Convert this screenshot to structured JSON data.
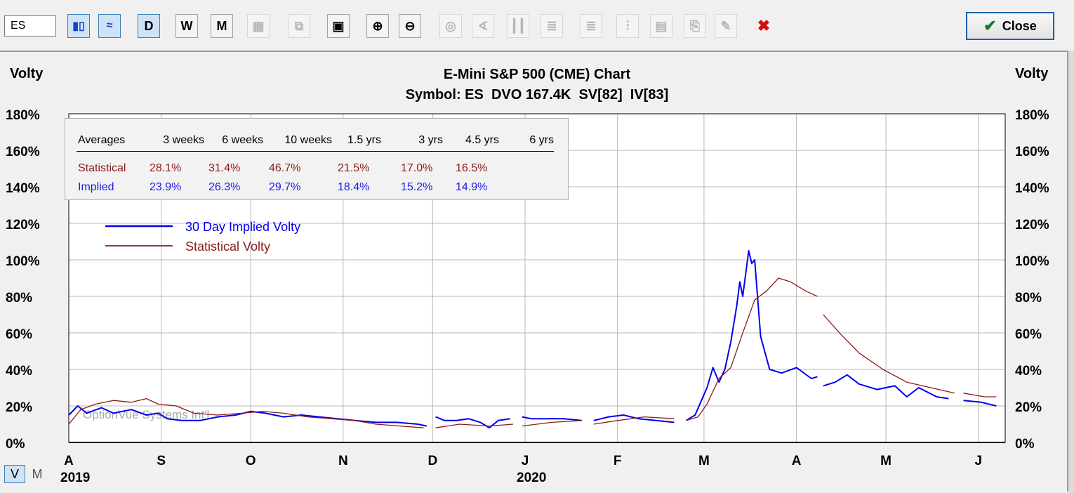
{
  "toolbar": {
    "symbol_value": "ES",
    "buttons": [
      {
        "name": "bar-chart-button",
        "glyph": "▮▯",
        "state": "sel"
      },
      {
        "name": "line-chart-button",
        "glyph": "≈",
        "state": "sel"
      },
      {
        "name": "daily-button",
        "glyph": "D",
        "state": "sel"
      },
      {
        "name": "weekly-button",
        "glyph": "W",
        "state": ""
      },
      {
        "name": "monthly-button",
        "glyph": "M",
        "state": ""
      },
      {
        "name": "grid-button",
        "glyph": "▦",
        "state": "dis"
      },
      {
        "name": "copy-button",
        "glyph": "⧉",
        "state": "dis"
      },
      {
        "name": "calendar-button",
        "glyph": "▣",
        "state": ""
      },
      {
        "name": "zoom-in-button",
        "glyph": "⊕",
        "state": ""
      },
      {
        "name": "zoom-out-button",
        "glyph": "⊖",
        "state": ""
      },
      {
        "name": "target-button",
        "glyph": "◎",
        "state": "dis"
      },
      {
        "name": "angle-button",
        "glyph": "∢",
        "state": "dis"
      },
      {
        "name": "candles-button",
        "glyph": "┃┃",
        "state": "dis"
      },
      {
        "name": "lines-button",
        "glyph": "≣",
        "state": "dis"
      },
      {
        "name": "levels-button",
        "glyph": "≣",
        "state": "dis"
      },
      {
        "name": "volume-button",
        "glyph": "⫶",
        "state": "dis"
      },
      {
        "name": "study-button",
        "glyph": "▤",
        "state": "dis"
      },
      {
        "name": "export-button",
        "glyph": "⎘",
        "state": "dis"
      },
      {
        "name": "pencil-button",
        "glyph": "✎",
        "state": "dis"
      },
      {
        "name": "delete-button",
        "glyph": "✖",
        "state": "flat"
      }
    ],
    "close_label": "Close",
    "close_icon": "✔"
  },
  "chart_data": {
    "type": "line",
    "title": "E-Mini S&P 500 (CME) Chart",
    "subtitle": "Symbol: ES  DVO 167.4K  SV[82]  IV[83]",
    "ylabel_left": "Volty",
    "ylabel_right": "Volty",
    "ylim": [
      0,
      180
    ],
    "yticks": [
      "0%",
      "20%",
      "40%",
      "60%",
      "80%",
      "100%",
      "120%",
      "140%",
      "160%",
      "180%"
    ],
    "x_start": "2019-08-01",
    "x_end": "2020-06-10",
    "month_ticks": [
      {
        "label": "A",
        "date": "2019-08-01",
        "year": "2019"
      },
      {
        "label": "S",
        "date": "2019-09-01"
      },
      {
        "label": "O",
        "date": "2019-10-01"
      },
      {
        "label": "N",
        "date": "2019-11-01"
      },
      {
        "label": "D",
        "date": "2019-12-01"
      },
      {
        "label": "J",
        "date": "2020-01-01",
        "year": "2020"
      },
      {
        "label": "F",
        "date": "2020-02-01"
      },
      {
        "label": "M",
        "date": "2020-03-01"
      },
      {
        "label": "A",
        "date": "2020-04-01"
      },
      {
        "label": "M",
        "date": "2020-05-01"
      },
      {
        "label": "J",
        "date": "2020-06-01"
      }
    ],
    "watermark": "OptionVue Systems Int'l",
    "legend": [
      {
        "label": "30 Day Implied Volty",
        "color": "#0000ee"
      },
      {
        "label": "Statistical Volty",
        "color": "#8b1a1a"
      }
    ],
    "series": [
      {
        "name": "30 Day Implied Volty",
        "color": "#0000ee",
        "points": [
          [
            "2019-08-01",
            15
          ],
          [
            "2019-08-04",
            20
          ],
          [
            "2019-08-07",
            16
          ],
          [
            "2019-08-12",
            19
          ],
          [
            "2019-08-16",
            16
          ],
          [
            "2019-08-22",
            18
          ],
          [
            "2019-08-27",
            15
          ],
          [
            "2019-08-31",
            16
          ],
          [
            "2019-09-03",
            13
          ],
          [
            "2019-09-08",
            12
          ],
          [
            "2019-09-14",
            12
          ],
          [
            "2019-09-20",
            14
          ],
          [
            "2019-09-26",
            15
          ],
          [
            "2019-10-01",
            17
          ],
          [
            "2019-10-06",
            16
          ],
          [
            "2019-10-12",
            14
          ],
          [
            "2019-10-18",
            15
          ],
          [
            "2019-10-24",
            14
          ],
          [
            "2019-10-30",
            13
          ],
          [
            "2019-11-05",
            12
          ],
          [
            "2019-11-12",
            11
          ],
          [
            "2019-11-19",
            11
          ],
          [
            "2019-11-26",
            10
          ],
          [
            "2019-11-29",
            9
          ],
          null,
          [
            "2019-12-02",
            14
          ],
          [
            "2019-12-05",
            12
          ],
          [
            "2019-12-09",
            12
          ],
          [
            "2019-12-13",
            13
          ],
          [
            "2019-12-17",
            11
          ],
          [
            "2019-12-20",
            8
          ],
          [
            "2019-12-23",
            12
          ],
          [
            "2019-12-27",
            13
          ],
          null,
          [
            "2019-12-31",
            14
          ],
          [
            "2020-01-03",
            13
          ],
          [
            "2020-01-08",
            13
          ],
          [
            "2020-01-14",
            13
          ],
          [
            "2020-01-20",
            12
          ],
          null,
          [
            "2020-01-24",
            12
          ],
          [
            "2020-01-29",
            14
          ],
          [
            "2020-02-03",
            15
          ],
          [
            "2020-02-08",
            13
          ],
          [
            "2020-02-14",
            12
          ],
          [
            "2020-02-20",
            11
          ],
          null,
          [
            "2020-02-24",
            12
          ],
          [
            "2020-02-27",
            15
          ],
          [
            "2020-03-02",
            30
          ],
          [
            "2020-03-04",
            41
          ],
          [
            "2020-03-06",
            33
          ],
          [
            "2020-03-08",
            40
          ],
          [
            "2020-03-10",
            55
          ],
          [
            "2020-03-12",
            75
          ],
          [
            "2020-03-13",
            88
          ],
          [
            "2020-03-14",
            80
          ],
          [
            "2020-03-16",
            105
          ],
          [
            "2020-03-17",
            98
          ],
          [
            "2020-03-18",
            100
          ],
          [
            "2020-03-20",
            58
          ],
          [
            "2020-03-23",
            40
          ],
          [
            "2020-03-27",
            38
          ],
          [
            "2020-04-01",
            41
          ],
          [
            "2020-04-06",
            35
          ],
          [
            "2020-04-08",
            36
          ],
          null,
          [
            "2020-04-10",
            31
          ],
          [
            "2020-04-14",
            33
          ],
          [
            "2020-04-18",
            37
          ],
          [
            "2020-04-22",
            32
          ],
          [
            "2020-04-28",
            29
          ],
          [
            "2020-05-04",
            31
          ],
          [
            "2020-05-08",
            25
          ],
          [
            "2020-05-12",
            30
          ],
          [
            "2020-05-18",
            25
          ],
          [
            "2020-05-22",
            24
          ],
          null,
          [
            "2020-05-27",
            23
          ],
          [
            "2020-06-02",
            22
          ],
          [
            "2020-06-07",
            20
          ]
        ]
      },
      {
        "name": "Statistical Volty",
        "color": "#8b1a1a",
        "points": [
          [
            "2019-08-01",
            10
          ],
          [
            "2019-08-05",
            18
          ],
          [
            "2019-08-10",
            21
          ],
          [
            "2019-08-16",
            23
          ],
          [
            "2019-08-22",
            22
          ],
          [
            "2019-08-27",
            24
          ],
          [
            "2019-08-31",
            21
          ],
          [
            "2019-09-06",
            20
          ],
          [
            "2019-09-12",
            16
          ],
          [
            "2019-09-20",
            15
          ],
          [
            "2019-09-28",
            16
          ],
          [
            "2019-10-05",
            17
          ],
          [
            "2019-10-12",
            16
          ],
          [
            "2019-10-20",
            14
          ],
          [
            "2019-10-28",
            13
          ],
          [
            "2019-11-05",
            12
          ],
          [
            "2019-11-12",
            10
          ],
          [
            "2019-11-20",
            9
          ],
          [
            "2019-11-28",
            8
          ],
          null,
          [
            "2019-12-02",
            8
          ],
          [
            "2019-12-10",
            10
          ],
          [
            "2019-12-20",
            9
          ],
          [
            "2019-12-28",
            10
          ],
          null,
          [
            "2019-12-31",
            9
          ],
          [
            "2020-01-10",
            11
          ],
          [
            "2020-01-20",
            12
          ],
          null,
          [
            "2020-01-24",
            10
          ],
          [
            "2020-02-01",
            12
          ],
          [
            "2020-02-10",
            14
          ],
          [
            "2020-02-20",
            13
          ],
          null,
          [
            "2020-02-24",
            12
          ],
          [
            "2020-02-28",
            14
          ],
          [
            "2020-03-02",
            21
          ],
          [
            "2020-03-06",
            35
          ],
          [
            "2020-03-10",
            41
          ],
          [
            "2020-03-14",
            60
          ],
          [
            "2020-03-18",
            78
          ],
          [
            "2020-03-22",
            83
          ],
          [
            "2020-03-26",
            90
          ],
          [
            "2020-03-30",
            88
          ],
          [
            "2020-04-04",
            83
          ],
          [
            "2020-04-08",
            80
          ],
          null,
          [
            "2020-04-10",
            70
          ],
          [
            "2020-04-16",
            59
          ],
          [
            "2020-04-22",
            49
          ],
          [
            "2020-04-30",
            40
          ],
          [
            "2020-05-08",
            33
          ],
          [
            "2020-05-16",
            30
          ],
          [
            "2020-05-24",
            27
          ],
          null,
          [
            "2020-05-27",
            27
          ],
          [
            "2020-06-03",
            25
          ],
          [
            "2020-06-07",
            25
          ]
        ]
      }
    ]
  },
  "averages_table": {
    "headers": [
      "Averages",
      "3 weeks",
      "6 weeks",
      "10 weeks",
      "1.5 yrs",
      "3 yrs",
      "4.5 yrs",
      "6 yrs"
    ],
    "statistical": [
      "Statistical",
      "28.1%",
      "31.4%",
      "46.7%",
      "21.5%",
      "17.0%",
      "16.5%",
      ""
    ],
    "implied": [
      "Implied",
      "23.9%",
      "26.3%",
      "29.7%",
      "18.4%",
      "15.2%",
      "14.9%",
      ""
    ]
  },
  "view_toggle": {
    "v_label": "V",
    "m_label": "M"
  },
  "colors": {
    "implied": "#0000ee",
    "statistical": "#8b1a1a",
    "grid": "#b8b8b8",
    "plot_bg": "#ffffff",
    "frame_bg": "#f0f0f0"
  }
}
